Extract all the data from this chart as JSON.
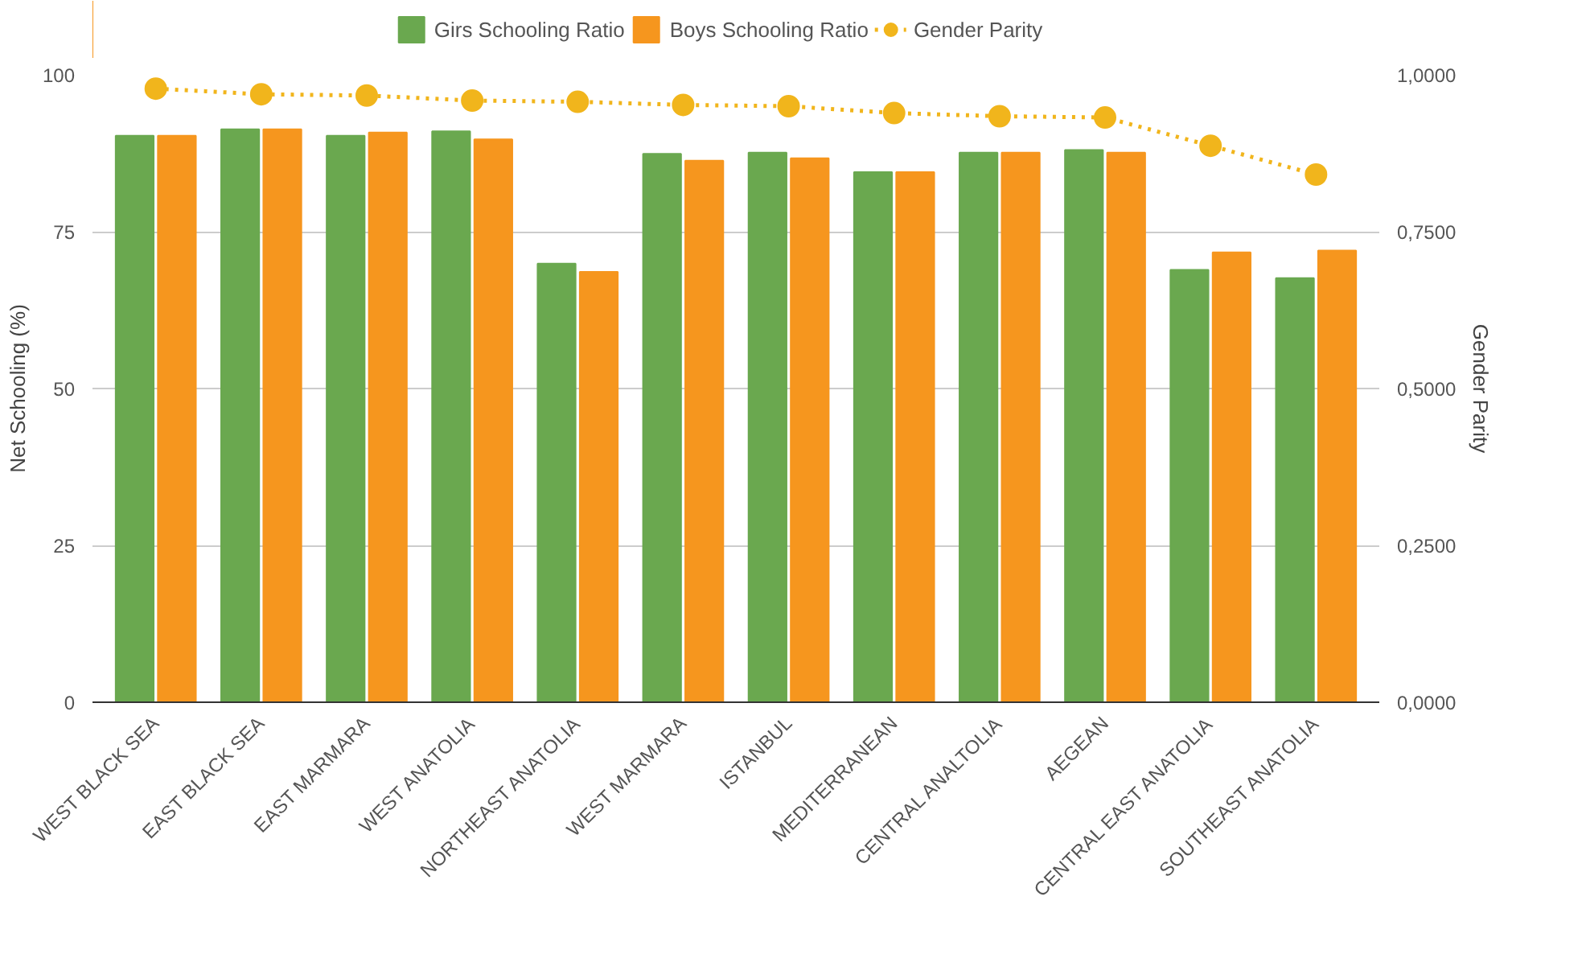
{
  "chart_data": {
    "type": "bar",
    "categories": [
      "WEST BLACK SEA",
      "EAST BLACK SEA",
      "EAST MARMARA",
      "WEST ANATOLIA",
      "NORTHEAST ANATOLIA",
      "WEST MARMARA",
      "ISTANBUL",
      "MEDITERRANEAN",
      "CENTRAL ANALTOLIA",
      "AEGEAN",
      "CENTRAL EAST ANATOLIA",
      "SOUTHEAST ANATOLIA"
    ],
    "series": [
      {
        "name": "Girs Schooling Ratio",
        "color": "#6aa84f",
        "values": [
          90.3,
          91.3,
          90.3,
          91.0,
          69.9,
          87.4,
          87.6,
          84.5,
          87.6,
          88.0,
          68.9,
          67.6
        ]
      },
      {
        "name": "Boys Schooling Ratio",
        "color": "#f6961e",
        "values": [
          90.3,
          91.3,
          90.8,
          89.7,
          68.6,
          86.3,
          86.7,
          84.5,
          87.6,
          87.6,
          71.7,
          72.0
        ]
      },
      {
        "name": "Gender Parity",
        "color": "#f1b51c",
        "type": "line",
        "axis": "y2",
        "marker": "circle",
        "line_style": "dotted",
        "values": [
          0.978,
          0.969,
          0.967,
          0.959,
          0.957,
          0.952,
          0.95,
          0.939,
          0.934,
          0.932,
          0.887,
          0.841
        ]
      }
    ],
    "ylabel": "Net Schooling (%)",
    "y2label": "Gender Parity",
    "ylim": [
      0,
      100
    ],
    "yticks": [
      0,
      25,
      50,
      75,
      100
    ],
    "y2lim": [
      0,
      1
    ],
    "y2ticks": [
      {
        "value": 0,
        "label": "0,0000"
      },
      {
        "value": 0.25,
        "label": "0,2500"
      },
      {
        "value": 0.5,
        "label": "0,5000"
      },
      {
        "value": 0.75,
        "label": "0,7500"
      },
      {
        "value": 1,
        "label": "1,0000"
      }
    ],
    "grid": "y",
    "legend": "top"
  }
}
